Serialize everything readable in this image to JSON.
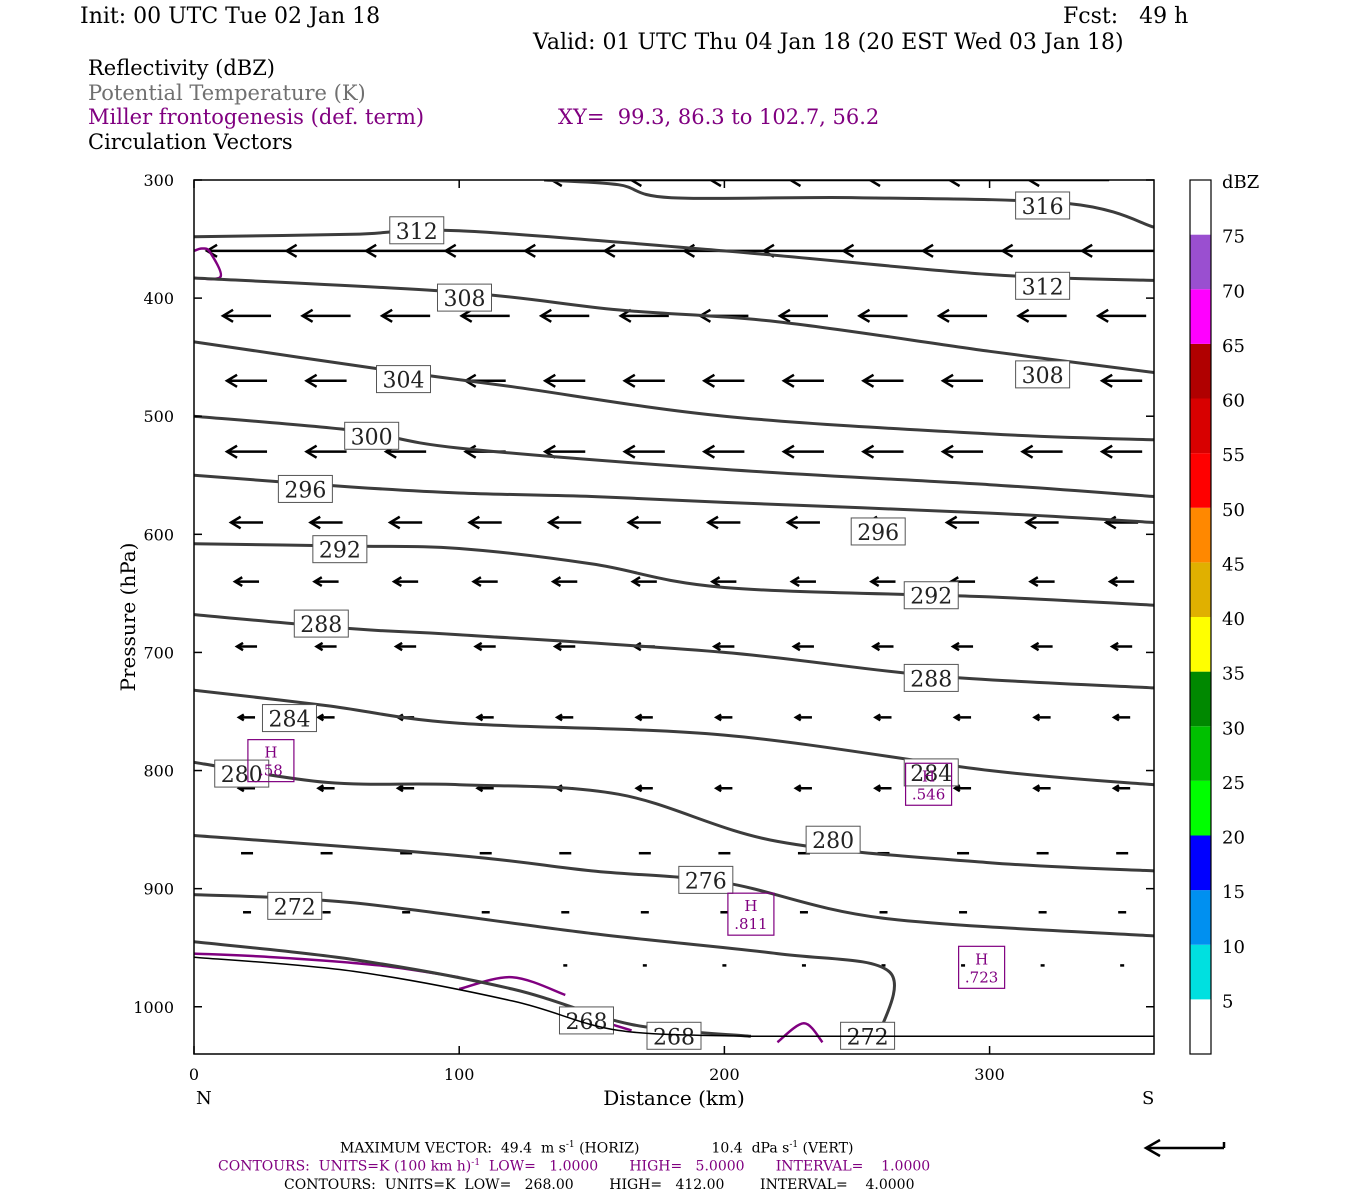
{
  "header": {
    "init": "Init: 00 UTC Tue 02 Jan 18",
    "fcst": "Fcst:   49 h",
    "valid": "Valid: 01 UTC Thu 04 Jan 18 (20 EST Wed 03 Jan 18)"
  },
  "legend": {
    "reflectivity": "Reflectivity (dBZ)",
    "theta": "Potential Temperature (K)",
    "miller": "Miller frontogenesis (def. term)",
    "xy": "XY=  99.3, 86.3 to 102.7, 56.2",
    "circulation": "Circulation Vectors"
  },
  "colors": {
    "theta": "#3c3c3c",
    "miller": "#800080",
    "gray_text": "#707070",
    "vectors": "#000000"
  },
  "chart_data": {
    "type": "cross-section",
    "xlabel": "Distance (km)",
    "ylabel": "Pressure (hPa)",
    "xlim": [
      0,
      362
    ],
    "ylim": [
      1040,
      300
    ],
    "xticks": [
      0,
      100,
      200,
      300
    ],
    "yticks": [
      300,
      400,
      500,
      600,
      700,
      800,
      900,
      1000
    ],
    "x_end_left": "N",
    "x_end_right": "S",
    "theta_contours": [
      {
        "level": 316,
        "points": [
          [
            132,
            300
          ],
          [
            160,
            304
          ],
          [
            180,
            315
          ],
          [
            250,
            315
          ],
          [
            330,
            320
          ],
          [
            362,
            340
          ]
        ],
        "labels": [
          [
            320,
            322
          ]
        ]
      },
      {
        "level": 312,
        "points": [
          [
            0,
            348
          ],
          [
            60,
            346
          ],
          [
            100,
            343
          ],
          [
            200,
            360
          ],
          [
            300,
            380
          ],
          [
            362,
            385
          ]
        ],
        "labels": [
          [
            84,
            343
          ],
          [
            320,
            390
          ]
        ]
      },
      {
        "level": 308,
        "points": [
          [
            0,
            383
          ],
          [
            100,
            395
          ],
          [
            160,
            410
          ],
          [
            220,
            420
          ],
          [
            300,
            445
          ],
          [
            362,
            463
          ]
        ],
        "labels": [
          [
            102,
            400
          ],
          [
            320,
            465
          ]
        ]
      },
      {
        "level": 304,
        "points": [
          [
            0,
            437
          ],
          [
            70,
            460
          ],
          [
            120,
            475
          ],
          [
            200,
            500
          ],
          [
            300,
            515
          ],
          [
            362,
            520
          ]
        ],
        "labels": [
          [
            79,
            469
          ]
        ]
      },
      {
        "level": 300,
        "points": [
          [
            0,
            500
          ],
          [
            60,
            512
          ],
          [
            100,
            527
          ],
          [
            200,
            545
          ],
          [
            300,
            558
          ],
          [
            362,
            568
          ]
        ],
        "labels": [
          [
            67,
            517
          ]
        ]
      },
      {
        "level": 296,
        "points": [
          [
            0,
            550
          ],
          [
            60,
            560
          ],
          [
            100,
            565
          ],
          [
            150,
            568
          ],
          [
            200,
            573
          ],
          [
            300,
            582
          ],
          [
            362,
            590
          ]
        ],
        "labels": [
          [
            42,
            562
          ],
          [
            258,
            598
          ]
        ]
      },
      {
        "level": 292,
        "points": [
          [
            0,
            608
          ],
          [
            60,
            610
          ],
          [
            100,
            612
          ],
          [
            150,
            625
          ],
          [
            200,
            645
          ],
          [
            300,
            653
          ],
          [
            362,
            660
          ]
        ],
        "labels": [
          [
            55,
            613
          ],
          [
            278,
            652
          ]
        ]
      },
      {
        "level": 288,
        "points": [
          [
            0,
            668
          ],
          [
            60,
            680
          ],
          [
            100,
            685
          ],
          [
            200,
            700
          ],
          [
            280,
            720
          ],
          [
            362,
            730
          ]
        ],
        "labels": [
          [
            48,
            676
          ],
          [
            278,
            722
          ]
        ]
      },
      {
        "level": 284,
        "points": [
          [
            0,
            732
          ],
          [
            50,
            745
          ],
          [
            100,
            760
          ],
          [
            200,
            770
          ],
          [
            300,
            800
          ],
          [
            362,
            812
          ]
        ],
        "labels": [
          [
            36,
            756
          ],
          [
            278,
            802
          ]
        ]
      },
      {
        "level": 280,
        "points": [
          [
            0,
            793
          ],
          [
            50,
            810
          ],
          [
            100,
            812
          ],
          [
            160,
            820
          ],
          [
            220,
            860
          ],
          [
            300,
            878
          ],
          [
            362,
            885
          ]
        ],
        "labels": [
          [
            18,
            803
          ],
          [
            241,
            859
          ]
        ]
      },
      {
        "level": 276,
        "points": [
          [
            0,
            855
          ],
          [
            100,
            872
          ],
          [
            150,
            885
          ],
          [
            200,
            895
          ],
          [
            260,
            925
          ],
          [
            362,
            940
          ]
        ],
        "labels": [
          [
            193,
            893
          ]
        ]
      },
      {
        "level": 272,
        "points": [
          [
            0,
            905
          ],
          [
            60,
            912
          ],
          [
            150,
            938
          ],
          [
            220,
            955
          ],
          [
            262,
            970
          ],
          [
            258,
            1025
          ]
        ],
        "labels": [
          [
            38,
            915
          ],
          [
            254,
            1025
          ]
        ]
      },
      {
        "level": 268,
        "points": [
          [
            0,
            945
          ],
          [
            60,
            960
          ],
          [
            120,
            985
          ],
          [
            165,
            1015
          ],
          [
            210,
            1025
          ]
        ],
        "labels": [
          [
            148,
            1012
          ],
          [
            181,
            1025
          ]
        ]
      }
    ],
    "frontogenesis_maxima": [
      {
        "label": "H",
        "value": ".58",
        "x": 29,
        "p": 795
      },
      {
        "label": "H",
        "value": ".546",
        "x": 277,
        "p": 815
      },
      {
        "label": "H",
        "value": ".811",
        "x": 210,
        "p": 925
      },
      {
        "label": "H",
        "value": ".723",
        "x": 297,
        "p": 970
      }
    ],
    "frontogenesis_contours": [
      {
        "points": [
          [
            0,
            360
          ],
          [
            3,
            358
          ],
          [
            6,
            361
          ],
          [
            10,
            382
          ],
          [
            0,
            383
          ]
        ]
      },
      {
        "points": [
          [
            0,
            955
          ],
          [
            30,
            958
          ],
          [
            70,
            965
          ],
          [
            100,
            975
          ]
        ]
      },
      {
        "points": [
          [
            100,
            985
          ],
          [
            120,
            975
          ],
          [
            140,
            990
          ]
        ]
      },
      {
        "points": [
          [
            150,
            1010
          ],
          [
            165,
            1020
          ]
        ]
      },
      {
        "points": [
          [
            220,
            1030
          ],
          [
            230,
            1014
          ],
          [
            237,
            1030
          ]
        ]
      }
    ],
    "vector_scale": {
      "horiz_m_per_s": 49.4,
      "vert_dpa_per_s": 10.4
    },
    "vectors": [
      {
        "p": 300,
        "xs": [
          150,
          180,
          210,
          240,
          270,
          300,
          330
        ],
        "u": -1
      },
      {
        "p": 360,
        "xs": [
          20,
          50,
          80,
          110,
          140,
          170,
          200,
          230,
          260,
          290,
          320,
          350
        ],
        "u": -1
      },
      {
        "p": 415,
        "xs": [
          20,
          50,
          80,
          110,
          140,
          170,
          200,
          230,
          260,
          290,
          320,
          350
        ],
        "u": -0.6
      },
      {
        "p": 470,
        "xs": [
          20,
          50,
          80,
          110,
          140,
          170,
          200,
          230,
          260,
          290,
          320,
          350
        ],
        "u": -0.5
      },
      {
        "p": 530,
        "xs": [
          20,
          50,
          80,
          110,
          140,
          170,
          200,
          230,
          260,
          290,
          320,
          350
        ],
        "u": -0.5
      },
      {
        "p": 590,
        "xs": [
          20,
          50,
          80,
          110,
          140,
          170,
          200,
          230,
          260,
          290,
          320,
          350
        ],
        "u": -0.4
      },
      {
        "p": 640,
        "xs": [
          20,
          50,
          80,
          110,
          140,
          170,
          200,
          230,
          260,
          290,
          320,
          350
        ],
        "u": -0.3
      },
      {
        "p": 695,
        "xs": [
          20,
          50,
          80,
          110,
          140,
          170,
          200,
          230,
          260,
          290,
          320,
          350
        ],
        "u": -0.25
      },
      {
        "p": 755,
        "xs": [
          20,
          50,
          80,
          110,
          140,
          170,
          200,
          230,
          260,
          290,
          320,
          350
        ],
        "u": -0.2
      },
      {
        "p": 815,
        "xs": [
          20,
          50,
          80,
          110,
          140,
          170,
          200,
          230,
          260,
          290,
          320,
          350
        ],
        "u": -0.2
      },
      {
        "p": 870,
        "xs": [
          20,
          50,
          80,
          110,
          140,
          170,
          200,
          230,
          260,
          290,
          320,
          350
        ],
        "u": -0.15
      },
      {
        "p": 920,
        "xs": [
          20,
          50,
          80,
          110,
          140,
          170,
          200,
          230,
          260,
          290,
          320,
          350
        ],
        "u": -0.1
      },
      {
        "p": 965,
        "xs": [
          140,
          170,
          200,
          230,
          260,
          290,
          320,
          350
        ],
        "u": -0.05
      }
    ],
    "colorbar": {
      "unit": "dBZ",
      "levels": [
        5,
        10,
        15,
        20,
        25,
        30,
        35,
        40,
        45,
        50,
        55,
        60,
        65,
        70,
        75
      ],
      "colors": [
        "#ffffff",
        "#00e0e0",
        "#0090f0",
        "#0000ff",
        "#00ff00",
        "#00c000",
        "#008800",
        "#ffff00",
        "#e0b000",
        "#ff8800",
        "#ff0000",
        "#d80000",
        "#b00000",
        "#ff00ff",
        "#9a4fd0",
        "#ffffff"
      ]
    }
  },
  "footer": {
    "max_vector": "MAXIMUM VECTOR:  49.4  m s",
    "max_vector_exp": "-1",
    "horiz": " (HORIZ)",
    "vert_val": "10.4  dPa s",
    "vert_exp": "-1",
    "vert": " (VERT)",
    "contours1": "CONTOURS:  UNITS=K (100 km h)",
    "contours1_exp": "-1",
    "contours1_rest": "  LOW=   1.0000       HIGH=   5.0000       INTERVAL=    1.0000",
    "contours2": "CONTOURS:  UNITS=K  LOW=   268.00        HIGH=   412.00        INTERVAL=    4.0000"
  }
}
